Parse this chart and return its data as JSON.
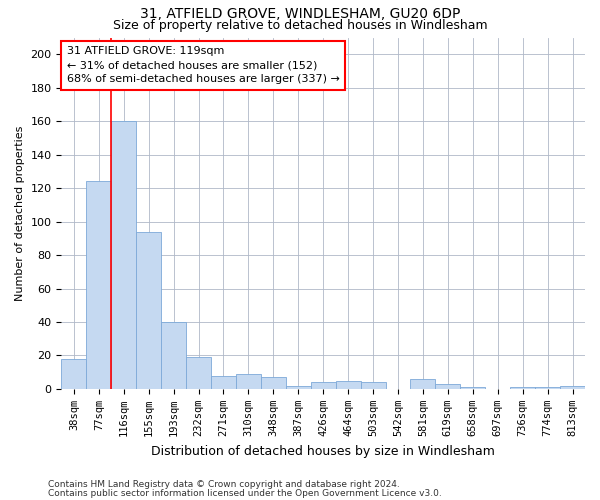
{
  "title1": "31, ATFIELD GROVE, WINDLESHAM, GU20 6DP",
  "title2": "Size of property relative to detached houses in Windlesham",
  "xlabel": "Distribution of detached houses by size in Windlesham",
  "ylabel": "Number of detached properties",
  "categories": [
    "38sqm",
    "77sqm",
    "116sqm",
    "155sqm",
    "193sqm",
    "232sqm",
    "271sqm",
    "310sqm",
    "348sqm",
    "387sqm",
    "426sqm",
    "464sqm",
    "503sqm",
    "542sqm",
    "581sqm",
    "619sqm",
    "658sqm",
    "697sqm",
    "736sqm",
    "774sqm",
    "813sqm"
  ],
  "values": [
    18,
    124,
    160,
    94,
    40,
    19,
    8,
    9,
    7,
    2,
    4,
    5,
    4,
    0,
    6,
    3,
    1,
    0,
    1,
    1,
    2
  ],
  "bar_color": "#c5d9f1",
  "bar_edge_color": "#7da9d8",
  "red_line_index": 2,
  "annotation_title": "31 ATFIELD GROVE: 119sqm",
  "annotation_line1": "← 31% of detached houses are smaller (152)",
  "annotation_line2": "68% of semi-detached houses are larger (337) →",
  "ylim": [
    0,
    210
  ],
  "yticks": [
    0,
    20,
    40,
    60,
    80,
    100,
    120,
    140,
    160,
    180,
    200
  ],
  "footnote1": "Contains HM Land Registry data © Crown copyright and database right 2024.",
  "footnote2": "Contains public sector information licensed under the Open Government Licence v3.0.",
  "background_color": "#ffffff",
  "grid_color": "#b0b8c8"
}
